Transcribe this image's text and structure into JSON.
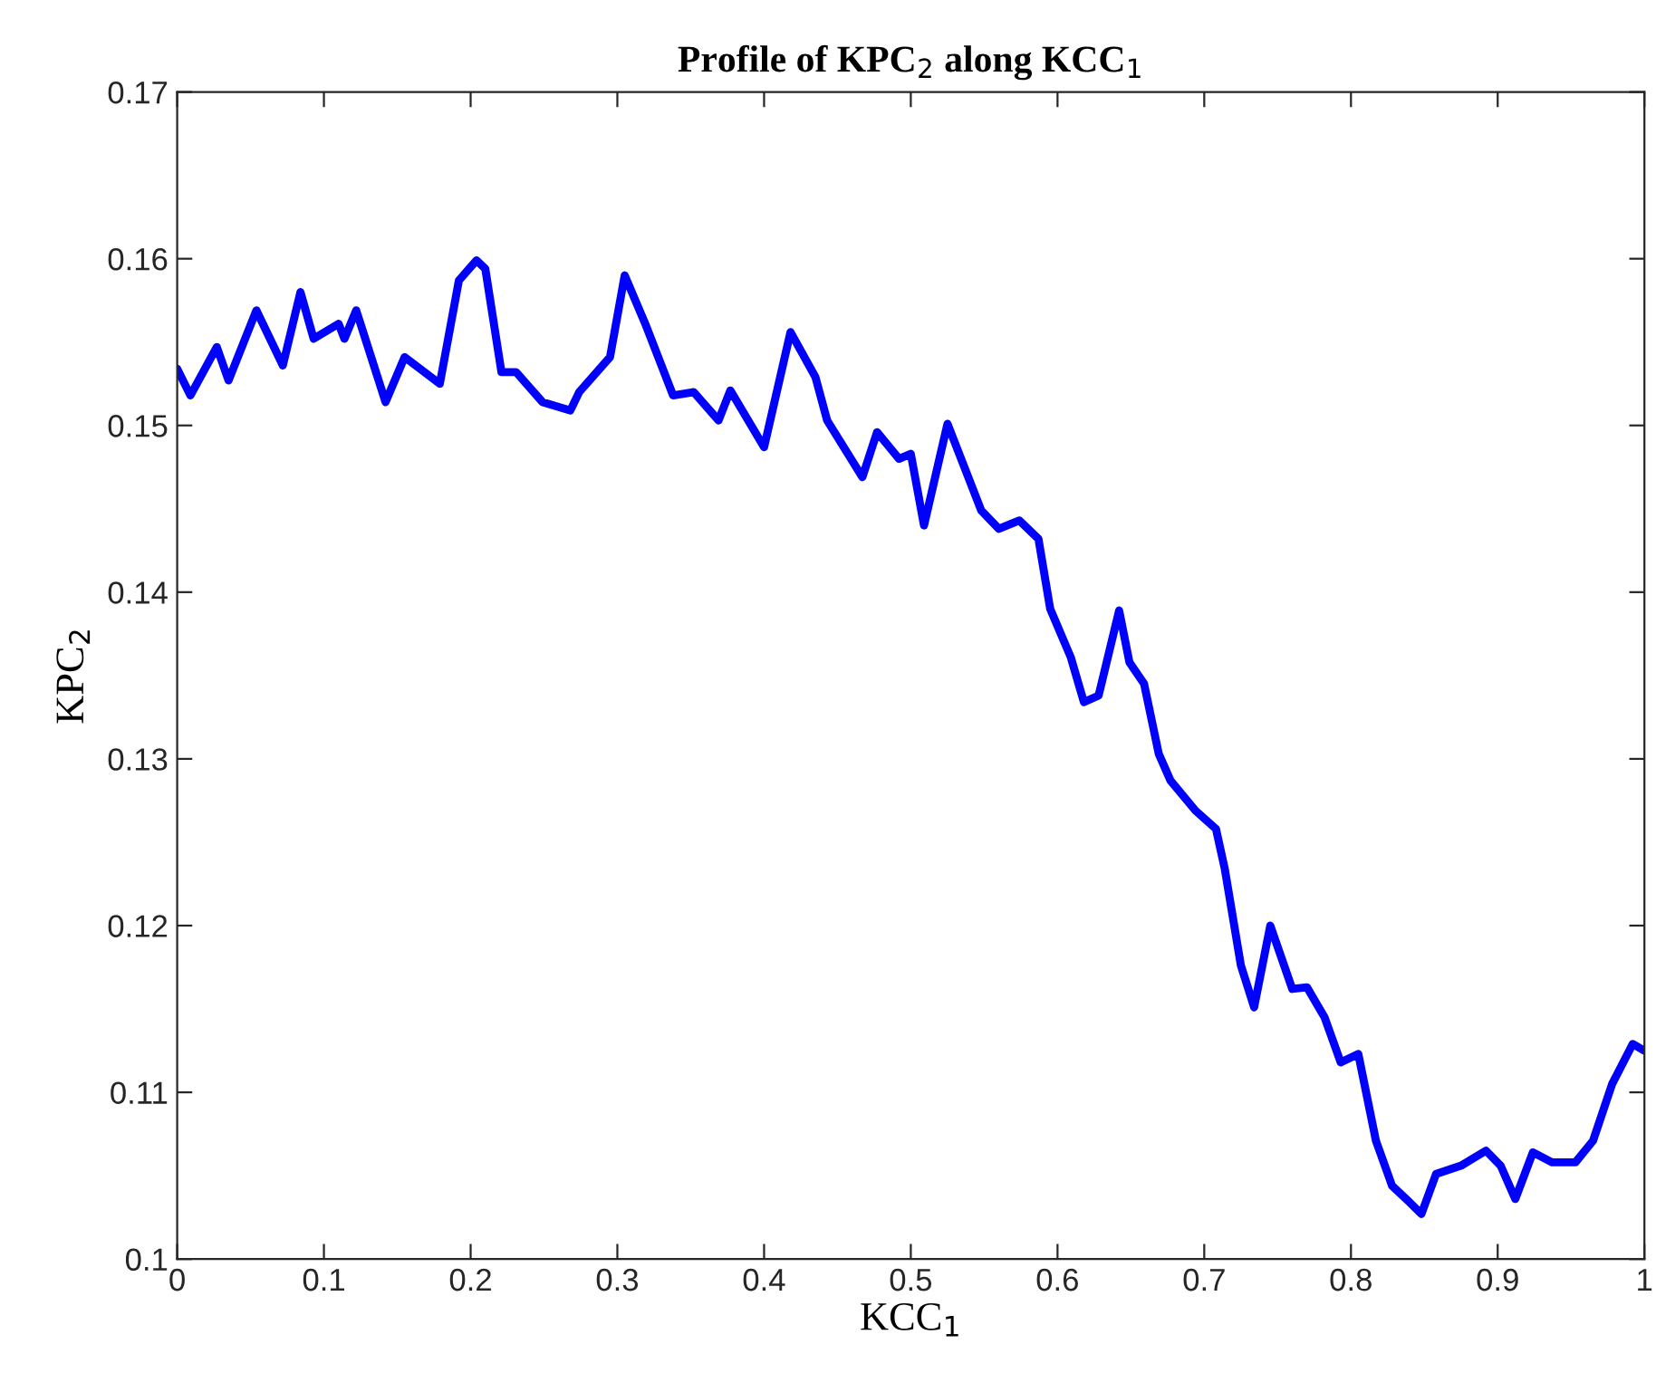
{
  "chart_data": {
    "type": "line",
    "title": "Profile of KPC$_{2}$ along KCC$_{1}$",
    "xlabel": "KCC$_{1}$",
    "ylabel": "KPC$_{2}$",
    "xlim": [
      0,
      1
    ],
    "xticks": [
      0,
      0.1,
      0.2,
      0.3,
      0.4,
      0.5,
      0.6,
      0.7,
      0.8,
      0.9,
      1
    ],
    "ylim": [
      0.1,
      0.17
    ],
    "yticks": [
      0.1,
      0.11,
      0.12,
      0.13,
      0.14,
      0.15,
      0.16,
      0.17
    ],
    "marker": "none",
    "line_style": "solid",
    "series": [
      {
        "color": "#0000ff",
        "x": [
          0,
          0.009,
          0.027,
          0.035,
          0.054,
          0.072,
          0.084,
          0.093,
          0.11,
          0.114,
          0.122,
          0.142,
          0.155,
          0.179,
          0.192,
          0.204,
          0.21,
          0.221,
          0.231,
          0.249,
          0.268,
          0.274,
          0.295,
          0.305,
          0.319,
          0.338,
          0.352,
          0.369,
          0.377,
          0.4,
          0.418,
          0.435,
          0.443,
          0.467,
          0.477,
          0.492,
          0.5,
          0.509,
          0.525,
          0.548,
          0.56,
          0.574,
          0.587,
          0.595,
          0.609,
          0.618,
          0.628,
          0.642,
          0.649,
          0.659,
          0.669,
          0.677,
          0.694,
          0.708,
          0.714,
          0.725,
          0.734,
          0.745,
          0.76,
          0.77,
          0.782,
          0.793,
          0.805,
          0.817,
          0.828,
          0.84,
          0.848,
          0.858,
          0.875,
          0.892,
          0.902,
          0.912,
          0.924,
          0.937,
          0.953,
          0.965,
          0.978,
          0.992,
          1.0
        ],
        "values": [
          0.1534,
          0.1518,
          0.1547,
          0.1527,
          0.1569,
          0.1536,
          0.158,
          0.1552,
          0.1561,
          0.1552,
          0.1569,
          0.1514,
          0.1541,
          0.1525,
          0.1587,
          0.1599,
          0.1594,
          0.1532,
          0.1532,
          0.1514,
          0.1509,
          0.152,
          0.1541,
          0.159,
          0.1561,
          0.1518,
          0.152,
          0.1503,
          0.1521,
          0.1487,
          0.1556,
          0.1529,
          0.1503,
          0.1469,
          0.1496,
          0.148,
          0.1483,
          0.144,
          0.1501,
          0.1449,
          0.1438,
          0.1443,
          0.1432,
          0.139,
          0.1361,
          0.1334,
          0.1338,
          0.1389,
          0.1358,
          0.1345,
          0.1303,
          0.1287,
          0.1269,
          0.1258,
          0.1234,
          0.1176,
          0.1151,
          0.12,
          0.1162,
          0.1163,
          0.1145,
          0.1118,
          0.1123,
          0.1071,
          0.1044,
          0.1034,
          0.1027,
          0.1051,
          0.1056,
          0.1065,
          0.1056,
          0.1036,
          0.1064,
          0.1058,
          0.1058,
          0.1071,
          0.1105,
          0.1129,
          0.1125
        ]
      }
    ]
  }
}
